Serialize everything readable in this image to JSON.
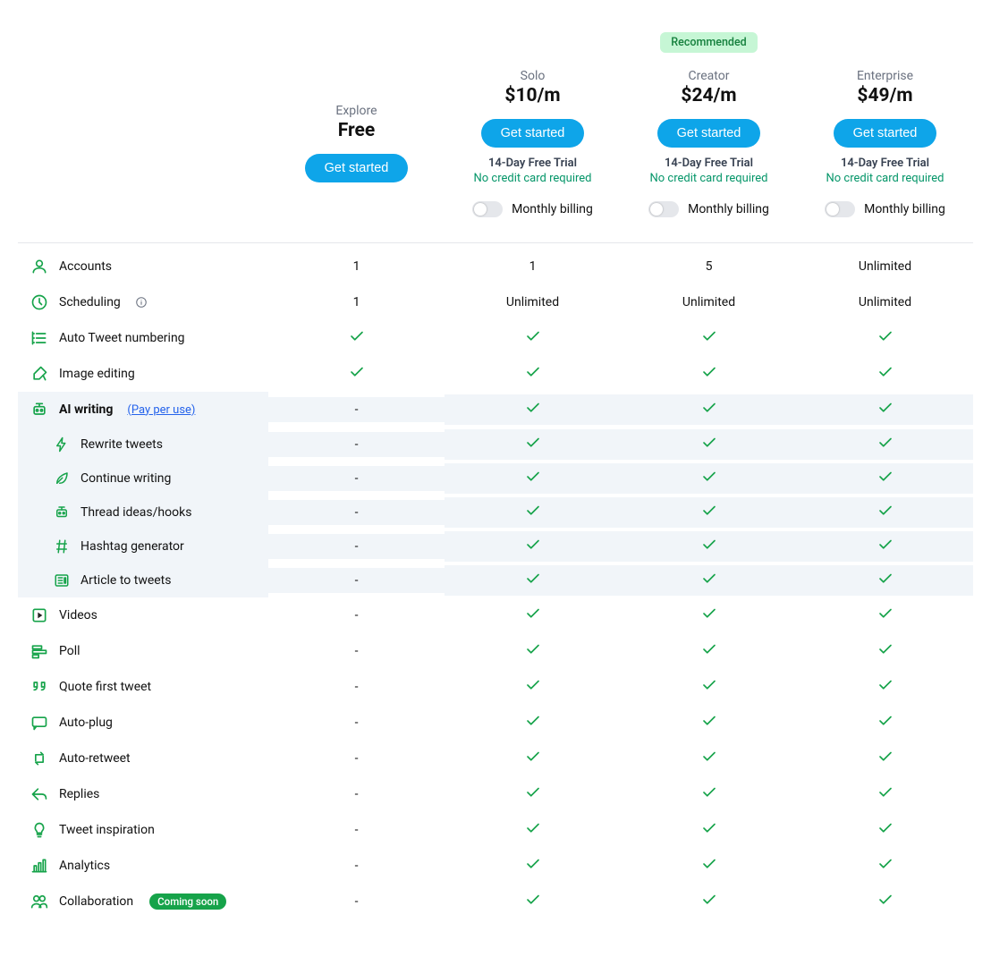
{
  "colors": {
    "brand_blue": "#0ea5e9",
    "green": "#16a34a",
    "green_text": "#059669",
    "badge_bg": "#c6f6d5",
    "badge_text": "#15803d",
    "muted": "#6b7280",
    "divider": "#e5e7eb",
    "highlight_row_bg": "#f1f5f9",
    "link": "#2563eb"
  },
  "plans": [
    {
      "name": "Explore",
      "price": "Free",
      "cta": "Get started",
      "trial": null,
      "nocard": null,
      "billing": null,
      "badge": null
    },
    {
      "name": "Solo",
      "price": "$10/m",
      "cta": "Get started",
      "trial": "14-Day Free Trial",
      "nocard": "No credit card required",
      "billing": "Monthly billing",
      "badge": null
    },
    {
      "name": "Creator",
      "price": "$24/m",
      "cta": "Get started",
      "trial": "14-Day Free Trial",
      "nocard": "No credit card required",
      "billing": "Monthly billing",
      "badge": "Recommended"
    },
    {
      "name": "Enterprise",
      "price": "$49/m",
      "cta": "Get started",
      "trial": "14-Day Free Trial",
      "nocard": "No credit card required",
      "billing": "Monthly billing",
      "badge": null
    }
  ],
  "features": [
    {
      "icon": "user",
      "label": "Accounts",
      "values": [
        "1",
        "1",
        "5",
        "Unlimited"
      ]
    },
    {
      "icon": "clock",
      "label": "Scheduling",
      "info": true,
      "values": [
        "1",
        "Unlimited",
        "Unlimited",
        "Unlimited"
      ]
    },
    {
      "icon": "list",
      "label": "Auto Tweet numbering",
      "values": [
        "check",
        "check",
        "check",
        "check"
      ]
    },
    {
      "icon": "paint",
      "label": "Image editing",
      "values": [
        "check",
        "check",
        "check",
        "check"
      ]
    },
    {
      "icon": "robot",
      "label": "AI writing",
      "link_text": "(Pay per use)",
      "bold": true,
      "highlight": true,
      "values": [
        "-",
        "check",
        "check",
        "check"
      ]
    },
    {
      "icon": "bolt",
      "label": "Rewrite tweets",
      "sub": true,
      "highlight": true,
      "values": [
        "-",
        "check",
        "check",
        "check"
      ]
    },
    {
      "icon": "leaf",
      "label": "Continue writing",
      "sub": true,
      "highlight": true,
      "values": [
        "-",
        "check",
        "check",
        "check"
      ]
    },
    {
      "icon": "robot",
      "label": "Thread ideas/hooks",
      "sub": true,
      "highlight": true,
      "values": [
        "-",
        "check",
        "check",
        "check"
      ]
    },
    {
      "icon": "hash",
      "label": "Hashtag generator",
      "sub": true,
      "highlight": true,
      "values": [
        "-",
        "check",
        "check",
        "check"
      ]
    },
    {
      "icon": "news",
      "label": "Article to tweets",
      "sub": true,
      "highlight": true,
      "values": [
        "-",
        "check",
        "check",
        "check"
      ]
    },
    {
      "icon": "play",
      "label": "Videos",
      "values": [
        "-",
        "check",
        "check",
        "check"
      ]
    },
    {
      "icon": "bars",
      "label": "Poll",
      "values": [
        "-",
        "check",
        "check",
        "check"
      ]
    },
    {
      "icon": "quote",
      "label": "Quote first tweet",
      "values": [
        "-",
        "check",
        "check",
        "check"
      ]
    },
    {
      "icon": "chat",
      "label": "Auto-plug",
      "values": [
        "-",
        "check",
        "check",
        "check"
      ]
    },
    {
      "icon": "retweet",
      "label": "Auto-retweet",
      "values": [
        "-",
        "check",
        "check",
        "check"
      ]
    },
    {
      "icon": "reply",
      "label": "Replies",
      "values": [
        "-",
        "check",
        "check",
        "check"
      ]
    },
    {
      "icon": "bulb",
      "label": "Tweet inspiration",
      "values": [
        "-",
        "check",
        "check",
        "check"
      ]
    },
    {
      "icon": "analytics",
      "label": "Analytics",
      "values": [
        "-",
        "check",
        "check",
        "check"
      ]
    },
    {
      "icon": "users",
      "label": "Collaboration",
      "pill": "Coming soon",
      "values": [
        "-",
        "check",
        "check",
        "check"
      ]
    }
  ]
}
